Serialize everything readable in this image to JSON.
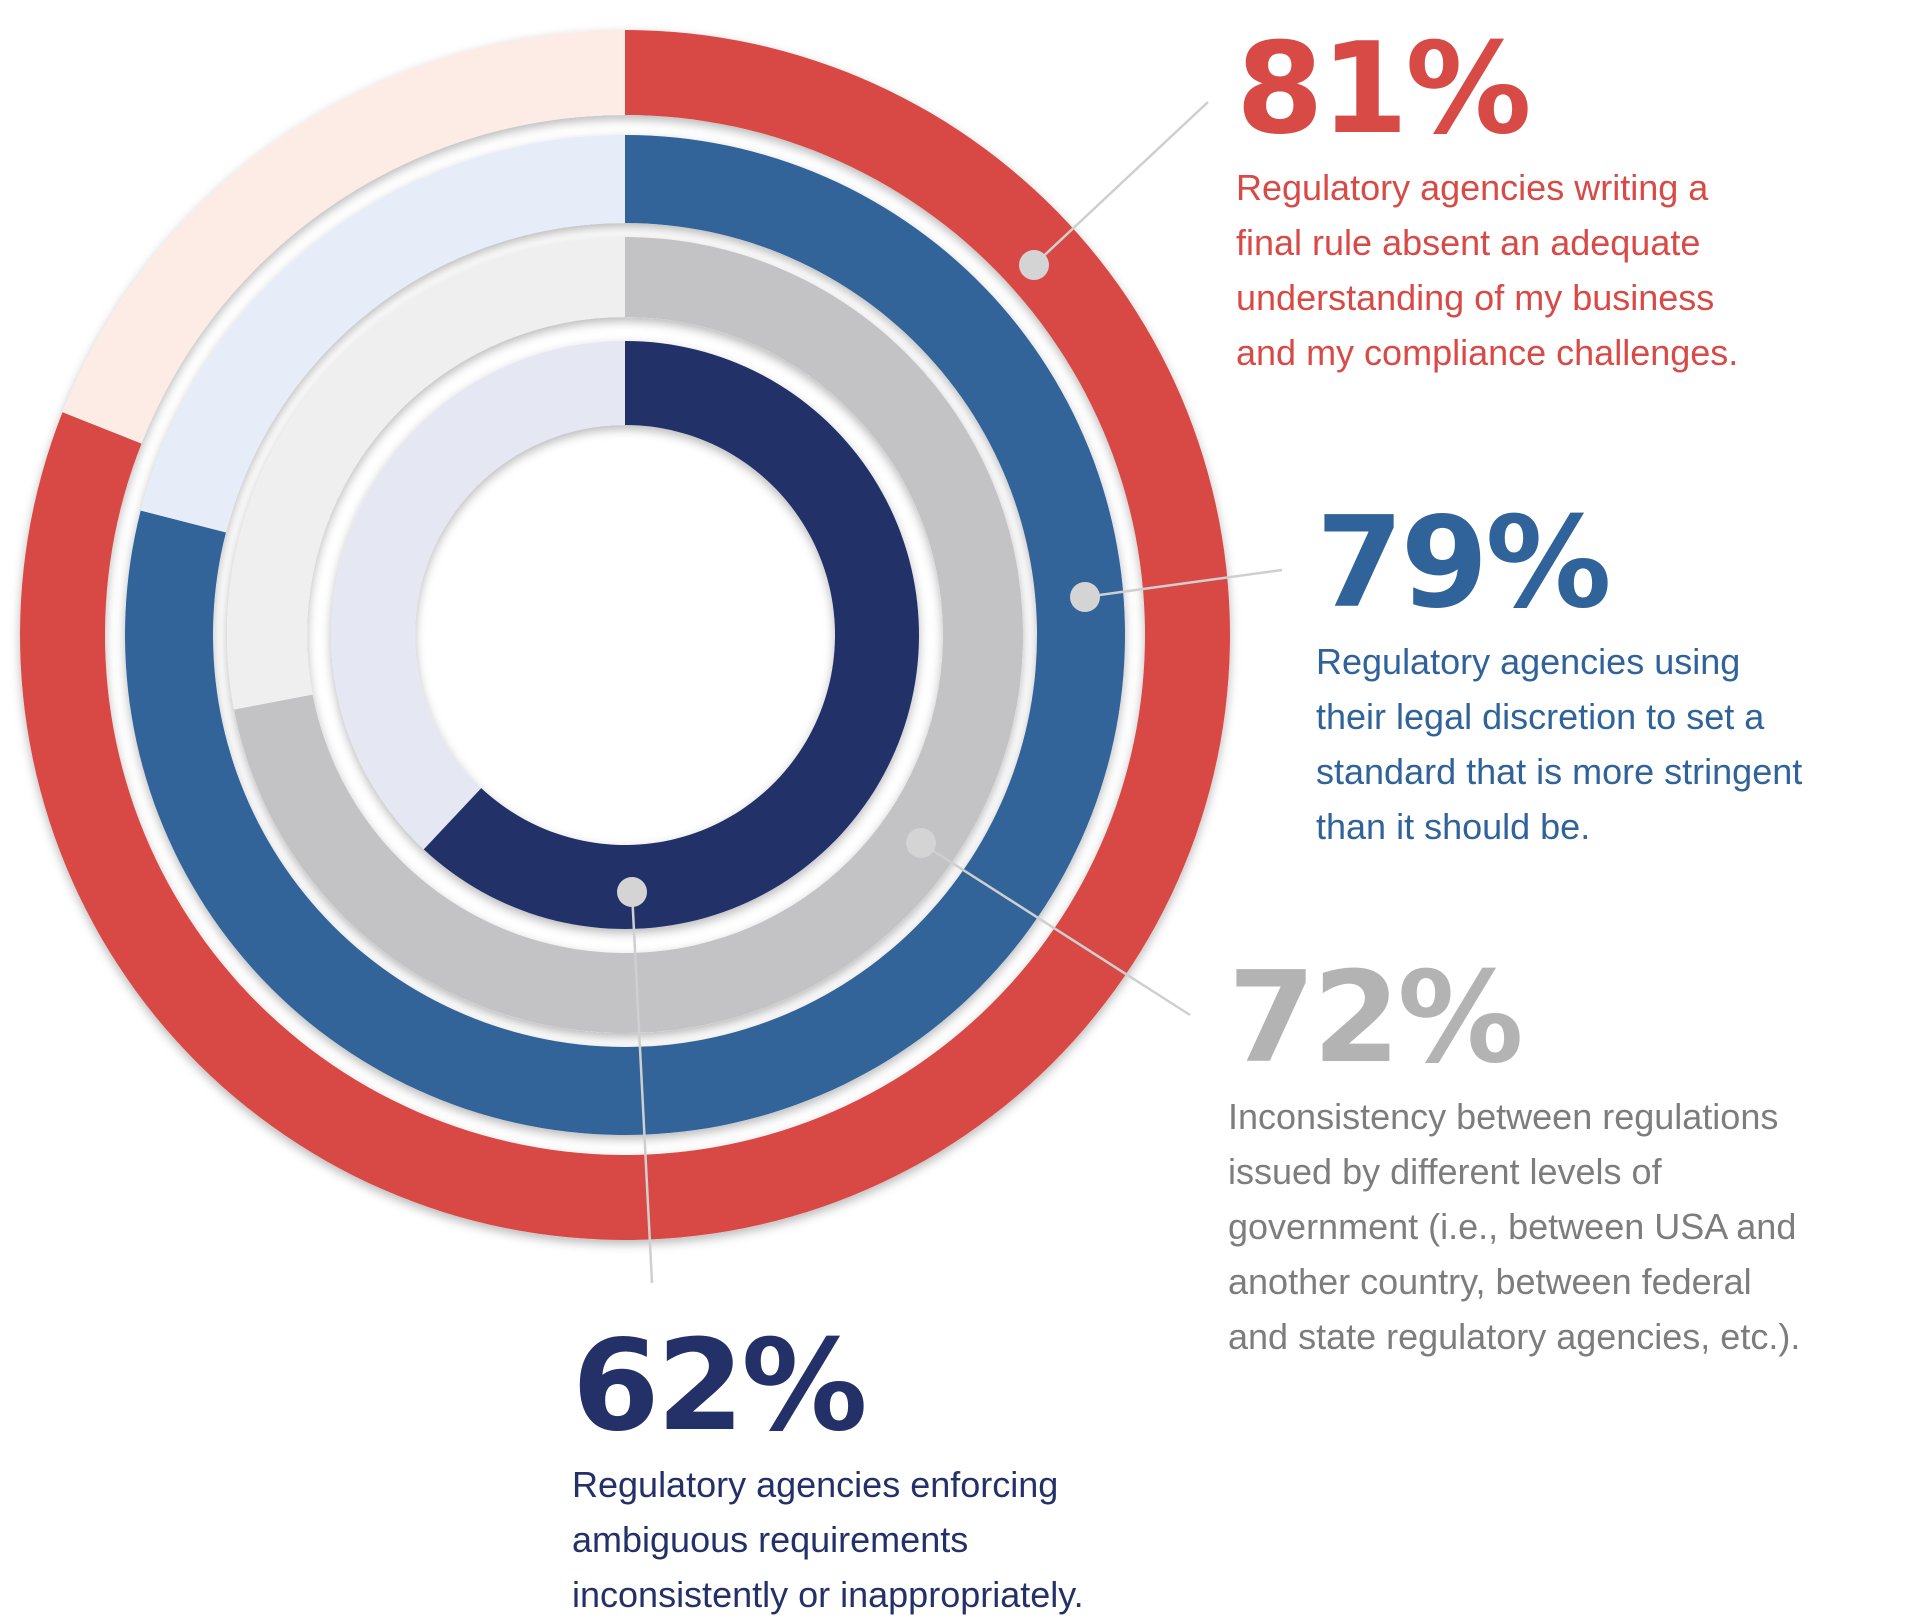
{
  "chart_data": {
    "type": "radial-bar",
    "unit": "%",
    "max": 100,
    "series": [
      {
        "value": 81,
        "value_label": "81%",
        "description": "Regulatory agencies writing a\nfinal rule absent an adequate\nunderstanding of my business\nand my compliance challenges.",
        "color": "#d84a45",
        "track_color": "#fdece6",
        "text_color": "#d84a45"
      },
      {
        "value": 79,
        "value_label": "79%",
        "description": "Regulatory agencies using\ntheir legal discretion to set a\nstandard that is more stringent\nthan it should be.",
        "color": "#306399",
        "track_color": "#e6edf8",
        "text_color": "#306399"
      },
      {
        "value": 72,
        "value_label": "72%",
        "description": "Inconsistency between regulations\nissued by different levels of\ngovernment (i.e., between USA and\nanother country, between federal\nand state regulatory agencies, etc.).",
        "color": "#c3c2c4",
        "track_color": "#efefef",
        "text_color": "#7d7d7d",
        "pct_color": "#b3b3b3"
      },
      {
        "value": 62,
        "value_label": "62%",
        "description": "Regulatory agencies enforcing\nambiguous requirements\ninconsistently or inappropriately.",
        "color": "#233168",
        "track_color": "#e5e7f3",
        "text_color": "#233168"
      }
    ]
  }
}
